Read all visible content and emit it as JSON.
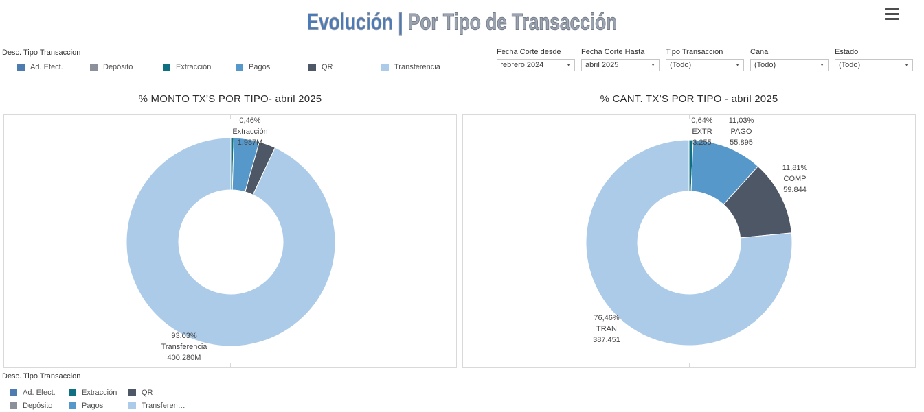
{
  "header": {
    "title_part1": "Evolución |",
    "title_part2": " Por Tipo de Transacción"
  },
  "filters": {
    "items": [
      {
        "label": "Fecha Corte desde",
        "value": "febrero 2024"
      },
      {
        "label": "Fecha Corte Hasta",
        "value": "abril 2025"
      },
      {
        "label": "Tipo Transaccion",
        "value": "(Todo)"
      },
      {
        "label": "Canal",
        "value": "(Todo)"
      },
      {
        "label": "Estado",
        "value": "(Todo)"
      }
    ]
  },
  "legend_top": {
    "title": "Desc. Tipo Transaccion",
    "items": [
      {
        "label": "Ad. Efect.",
        "color": "#4e7cb0"
      },
      {
        "label": "Depósito",
        "color": "#8b909a"
      },
      {
        "label": "Extracción",
        "color": "#0f7081"
      },
      {
        "label": "Pagos",
        "color": "#5798cb"
      },
      {
        "label": "QR",
        "color": "#4d5766"
      },
      {
        "label": "Transferencia",
        "color": "#abcbe8"
      }
    ]
  },
  "legend_bottom": {
    "title": "Desc. Tipo Transaccion",
    "columns": [
      [
        {
          "label": "Ad. Efect.",
          "color": "#4e7cb0"
        },
        {
          "label": "Depósito",
          "color": "#8b909a"
        }
      ],
      [
        {
          "label": "Extracción",
          "color": "#0f7081"
        },
        {
          "label": "Pagos",
          "color": "#5798cb"
        }
      ],
      [
        {
          "label": "QR",
          "color": "#4d5766"
        },
        {
          "label": "Transferen…",
          "color": "#abcbe8"
        }
      ]
    ]
  },
  "chart_data": [
    {
      "type": "pie",
      "subtype": "donut",
      "title": "% MONTO TX’S  POR TIPO- abril 2025",
      "hole_ratio": 0.5,
      "start_angle_deg": -90,
      "direction": "clockwise",
      "slices": [
        {
          "name": "Extracción",
          "pct": 0.46,
          "pct_label": "0,46%",
          "value_label": "1.987M",
          "color": "#0f7081",
          "labeled": true
        },
        {
          "name": "Pagos",
          "pct": 3.95,
          "pct_label": "",
          "value_label": "",
          "color": "#5798cb",
          "labeled": false,
          "estimated": true
        },
        {
          "name": "QR",
          "pct": 2.56,
          "pct_label": "",
          "value_label": "",
          "color": "#4d5766",
          "labeled": false,
          "estimated": true
        },
        {
          "name": "Transferencia",
          "pct": 93.03,
          "pct_label": "93,03%",
          "value_label": "400.280M",
          "color": "#abcbe8",
          "labeled": true
        }
      ]
    },
    {
      "type": "pie",
      "subtype": "donut",
      "title": "% CANT. TX’S  POR TIPO -  abril 2025",
      "hole_ratio": 0.5,
      "start_angle_deg": -90,
      "direction": "clockwise",
      "slices": [
        {
          "name": "EXTR",
          "pct": 0.64,
          "pct_label": "0,64%",
          "value_label": "3.255",
          "color": "#0f7081",
          "labeled": true
        },
        {
          "name": "PAGO",
          "pct": 11.03,
          "pct_label": "11,03%",
          "value_label": "55.895",
          "color": "#5798cb",
          "labeled": true
        },
        {
          "name": "COMP",
          "pct": 11.81,
          "pct_label": "11,81%",
          "value_label": "59.844",
          "color": "#4d5766",
          "labeled": true
        },
        {
          "name": "TRAN",
          "pct": 76.46,
          "pct_label": "76,46%",
          "value_label": "387.451",
          "color": "#abcbe8",
          "labeled": true
        }
      ]
    }
  ]
}
